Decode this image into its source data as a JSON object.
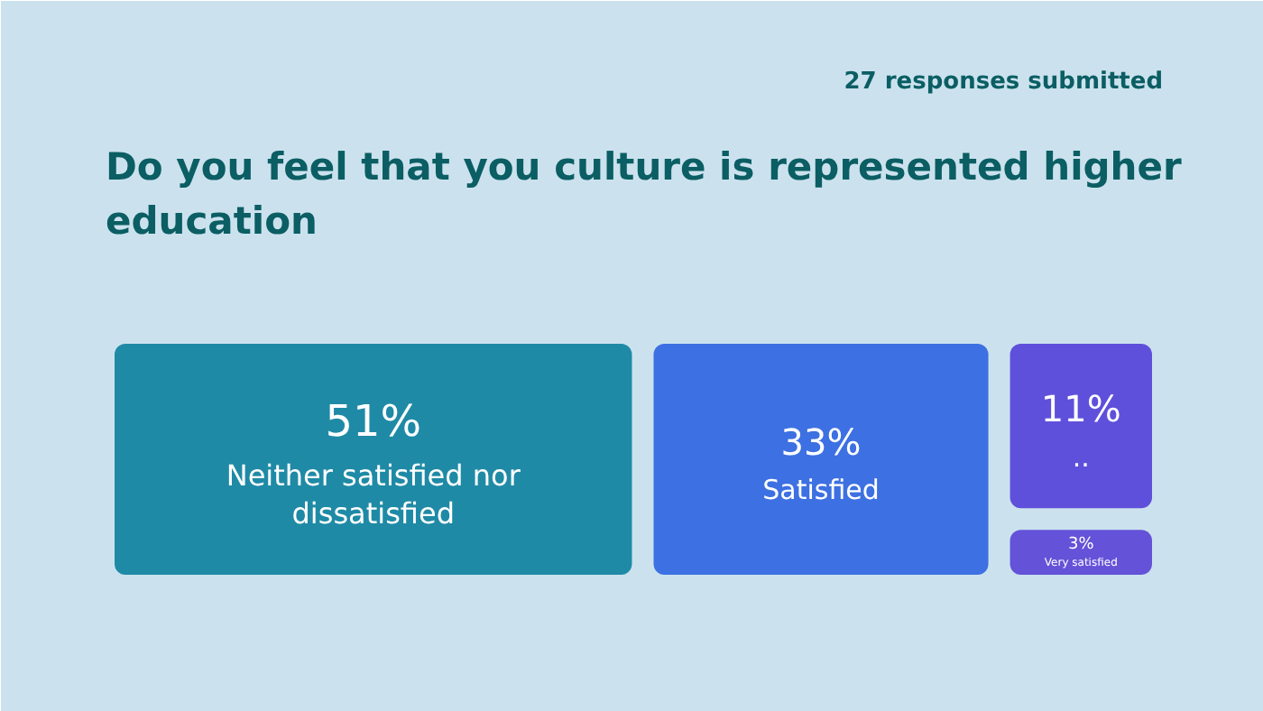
{
  "chart_data": {
    "type": "other",
    "title": "Do you feel that you culture is represented higher education",
    "annotations": [
      "27 responses submitted"
    ],
    "categories": [
      "Neither satisfied nor dissatisfied",
      "Satisfied",
      "..",
      "Very satisfied"
    ],
    "values": [
      51,
      33,
      11,
      3
    ],
    "value_labels": [
      "51%",
      "33%",
      "11%",
      "3%"
    ],
    "colors": [
      "#1f8aa6",
      "#3d70e2",
      "#5f50db",
      "#6452d8"
    ]
  }
}
